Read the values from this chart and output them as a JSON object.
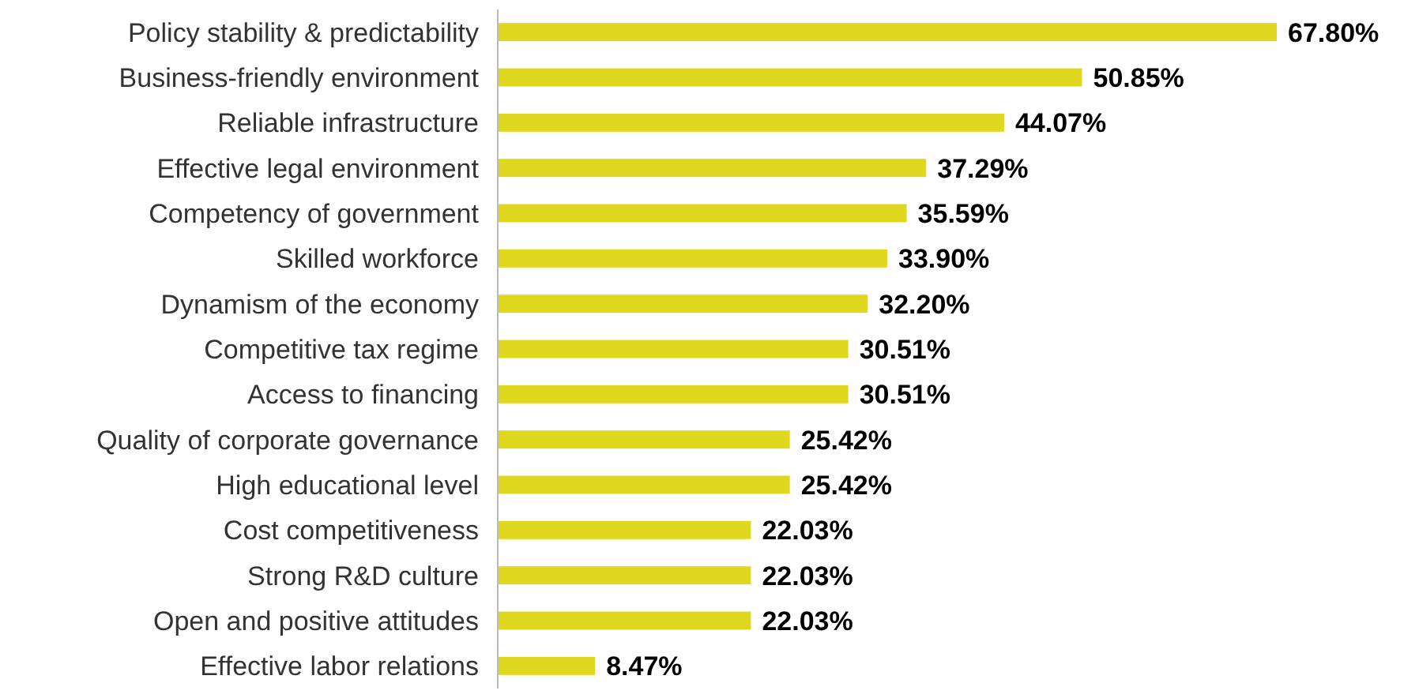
{
  "chart_data": {
    "type": "bar",
    "orientation": "horizontal",
    "categories": [
      "Policy stability & predictability",
      "Business-friendly environment",
      "Reliable infrastructure",
      "Effective legal environment",
      "Competency of government",
      "Skilled workforce",
      "Dynamism of the economy",
      "Competitive tax regime",
      "Access to financing",
      "Quality of corporate governance",
      "High educational level",
      "Cost competitiveness",
      "Strong R&D culture",
      "Open and positive attitudes",
      "Effective labor relations"
    ],
    "values": [
      67.8,
      50.85,
      44.07,
      37.29,
      35.59,
      33.9,
      32.2,
      30.51,
      30.51,
      25.42,
      25.42,
      22.03,
      22.03,
      22.03,
      8.47
    ],
    "value_labels": [
      "67.80%",
      "50.85%",
      "44.07%",
      "37.29%",
      "35.59%",
      "33.90%",
      "32.20%",
      "30.51%",
      "30.51%",
      "25.42%",
      "25.42%",
      "22.03%",
      "22.03%",
      "22.03%",
      "8.47%"
    ],
    "color": "#e0d81e"
  }
}
